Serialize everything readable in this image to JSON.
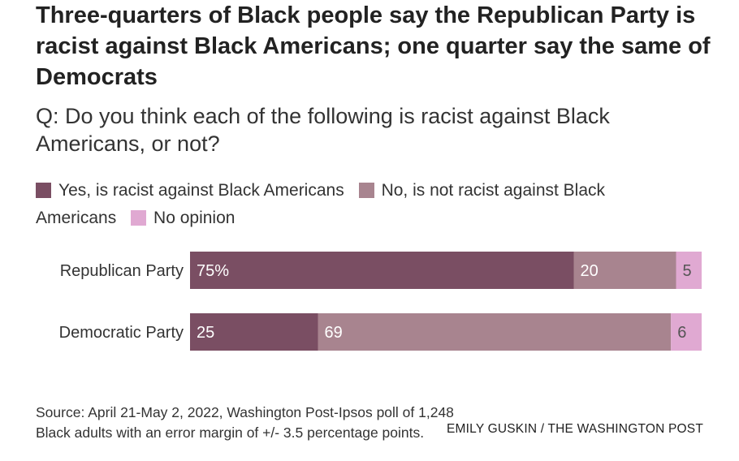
{
  "title": "Three-quarters of Black people say the Republican Party is racist against Black Americans; one quarter say the same of Democrats",
  "subtitle": "Q: Do you think each of the following is racist against Black Americans, or not?",
  "legend": [
    {
      "label": "Yes, is racist against Black Americans",
      "color": "#7a4e63"
    },
    {
      "label": "No, is not racist against Black Americans",
      "color": "#a8848f"
    },
    {
      "label": "No opinion",
      "color": "#e0a9d2"
    }
  ],
  "source": "Source: April 21-May 2, 2022, Washington Post-Ipsos poll of 1,248 Black adults with an error margin of +/- 3.5 percentage points.",
  "credit": "EMILY GUSKIN / THE WASHINGTON POST",
  "chart_data": {
    "type": "bar",
    "orientation": "horizontal",
    "stacked": true,
    "categories": [
      "Republican Party",
      "Democratic Party"
    ],
    "series": [
      {
        "name": "Yes, is racist against Black Americans",
        "values": [
          75,
          25
        ],
        "labels": [
          "75%",
          "25"
        ],
        "color": "#7a4e63"
      },
      {
        "name": "No, is not racist against Black Americans",
        "values": [
          20,
          69
        ],
        "labels": [
          "20",
          "69"
        ],
        "color": "#a8848f"
      },
      {
        "name": "No opinion",
        "values": [
          5,
          6
        ],
        "labels": [
          "5",
          "6"
        ],
        "color": "#e0a9d2"
      }
    ],
    "xlim": [
      0,
      100
    ],
    "grid": false,
    "legend_position": "top"
  }
}
